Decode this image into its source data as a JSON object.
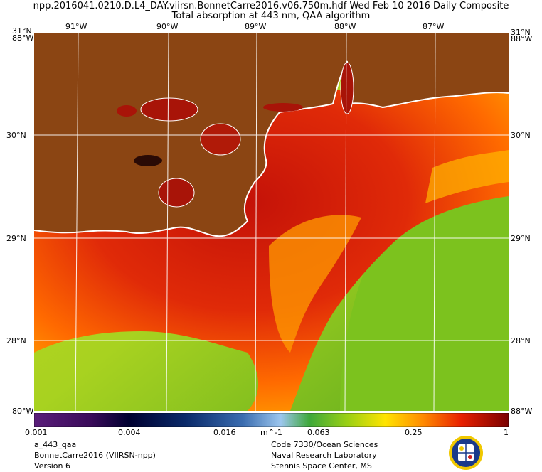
{
  "header": {
    "line1": "npp.2016041.0210.D.L4_DAY.viirsn.BonnetCarre2016.v06.750m.hdf    Wed Feb 10 2016 Daily Composite",
    "line2": "Total absorption at 443 nm, QAA algorithm"
  },
  "map": {
    "top_lon_labels": [
      "91°W",
      "90°W",
      "89°W",
      "88°W",
      "87°W"
    ],
    "left_lat_labels": [
      "31°N",
      "30°N",
      "29°N",
      "28°N"
    ],
    "right_lat_labels": [
      "31°N",
      "30°N",
      "29°N",
      "28°N"
    ],
    "corner_top_left": "88°W",
    "corner_top_right": "88°W",
    "corner_bottom_left": "80°W",
    "corner_bottom_right": "88°W",
    "colors": {
      "land": "#8b4513",
      "coast": "#ffffff",
      "grid": "#ffffff",
      "high_absorption": "#d41a0a",
      "mid_absorption": "#ff9a00",
      "low_absorption": "#8fcf1e"
    }
  },
  "colorbar": {
    "tick_labels": [
      "0.001",
      "0.004",
      "0.016",
      "m^-1",
      "0.063",
      "0.25",
      "1"
    ],
    "stops": [
      "#5a1d7a",
      "#3a0b5a",
      "#000030",
      "#0a2a6a",
      "#3b6db0",
      "#9cc6ee",
      "#3ea83a",
      "#9ad014",
      "#ffe400",
      "#ff8a00",
      "#e82000",
      "#7a0000"
    ]
  },
  "footer": {
    "left": [
      "a_443_qaa",
      "BonnetCarre2016 (VIIRSN-npp)",
      "Version 6"
    ],
    "right": [
      "Code 7330/Ocean Sciences",
      "Naval Research Laboratory",
      "Stennis Space Center, MS"
    ]
  }
}
